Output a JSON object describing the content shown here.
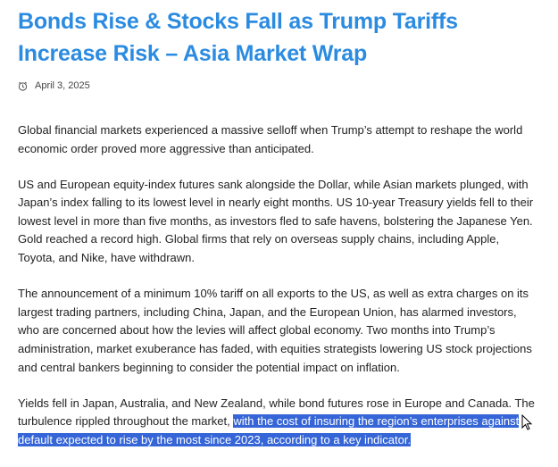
{
  "header": {
    "title": "Bonds Rise & Stocks Fall as Trump Tariffs Increase Risk – Asia Market Wrap",
    "date": "April 3, 2025"
  },
  "paragraphs": [
    "Global financial markets experienced a massive selloff when Trump’s attempt to reshape the world economic order proved more aggressive than anticipated.",
    "US and European equity-index futures sank alongside the Dollar, while Asian markets plunged, with Japan’s index falling to its lowest level in nearly eight months. US 10-year Treasury yields fell to their lowest level in more than five months, as investors fled to safe havens, bolstering the Japanese Yen. Gold reached a record high. Global firms that rely on overseas supply chains, including Apple, Toyota, and Nike, have withdrawn.",
    "The announcement of a minimum 10% tariff on all exports to the US, as well as extra charges on its largest trading partners, including China, Japan, and the European Union, has alarmed investors, who are concerned about how the levies will affect global economy. Two months into Trump’s administration, market exuberance has faded, with equities strategists lowering US stock projections and central bankers beginning to consider the potential impact on inflation."
  ],
  "last_paragraph": {
    "text": "Yields fell in Japan, Australia, and New Zealand, while bond futures rose in Europe and Canada. The turbulence rippled throughout the market, ",
    "highlighted": "with the cost of insuring the region’s enterprises against default expected to rise by the most since 2023, according to a key indicator."
  }
}
